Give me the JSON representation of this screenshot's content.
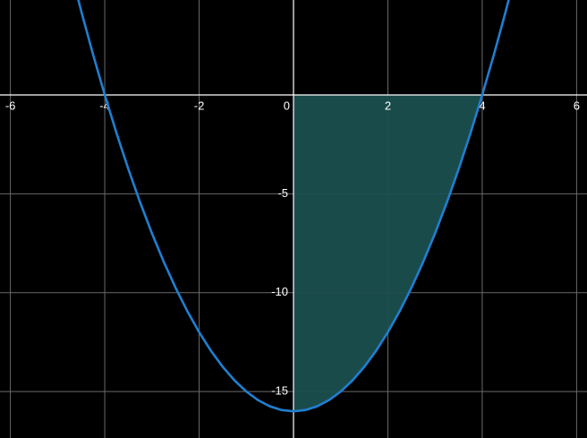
{
  "chart_data": {
    "type": "line",
    "x": [
      -5,
      -4.75,
      -4.5,
      -4.25,
      -4,
      -3.75,
      -3.5,
      -3.25,
      -3,
      -2.75,
      -2.5,
      -2.25,
      -2,
      -1.75,
      -1.5,
      -1.25,
      -1,
      -0.75,
      -0.5,
      -0.25,
      0,
      0.25,
      0.5,
      0.75,
      1,
      1.25,
      1.5,
      1.75,
      2,
      2.25,
      2.5,
      2.75,
      3,
      3.25,
      3.5,
      3.75,
      4,
      4.25,
      4.5,
      4.75,
      5
    ],
    "series": [
      {
        "color": "#1f7fd1",
        "values": [
          9,
          6.5625,
          4.25,
          2.0625,
          0,
          -1.9375,
          -3.75,
          -5.4375,
          -7,
          -8.4375,
          -9.75,
          -10.9375,
          -12,
          -12.9375,
          -13.75,
          -14.4375,
          -15,
          -15.4375,
          -15.75,
          -15.9375,
          -16,
          -15.9375,
          -15.75,
          -15.4375,
          -15,
          -14.4375,
          -13.75,
          -12.9375,
          -12,
          -10.9375,
          -9.75,
          -8.4375,
          -7,
          -5.4375,
          -3.75,
          -1.9375,
          0,
          2.0625,
          4.25,
          6.5625,
          9
        ]
      }
    ],
    "shade_range": [
      0,
      4
    ],
    "shade_color": "#1b4f4f",
    "xlim": [
      -6.22,
      6.22
    ],
    "ylim": [
      -17.35,
      4.8
    ],
    "xticks": [
      -6,
      -4,
      -2,
      0,
      2,
      4,
      6
    ],
    "yticks": [
      -15,
      -10,
      -5
    ],
    "grid": true
  }
}
